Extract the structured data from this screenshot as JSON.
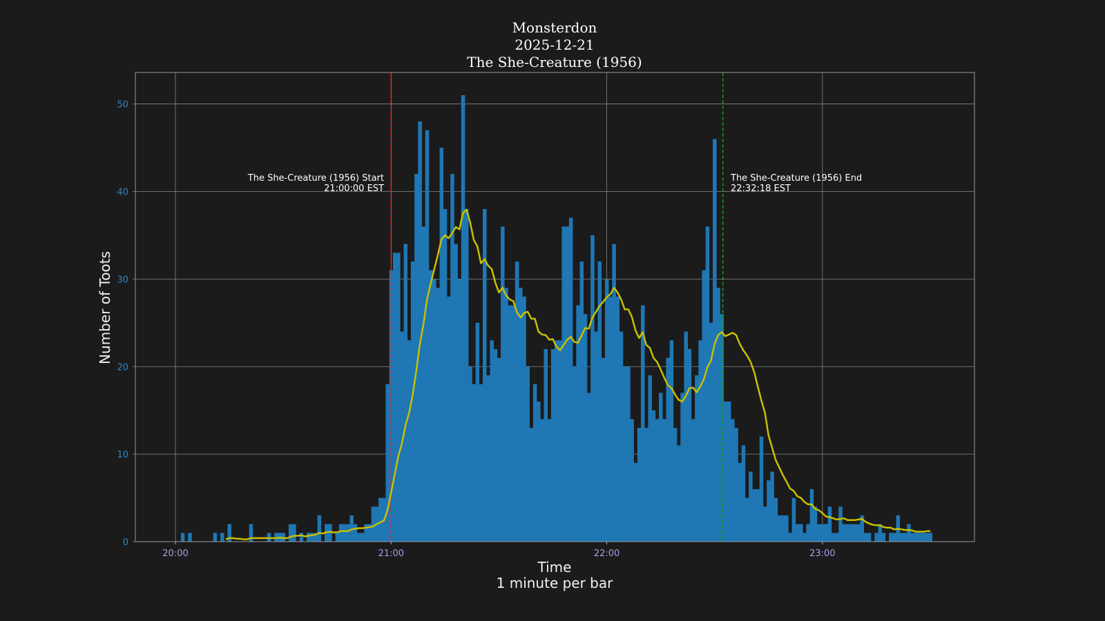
{
  "chart_data": {
    "type": "bar",
    "title_lines": [
      "Monsterdon",
      "2025-12-21",
      "The She-Creature (1956)"
    ],
    "xlabel": "Time",
    "xlabel_sub": "1 minute per bar",
    "ylabel": "Number of Toots",
    "x_ticks": [
      "20:00",
      "21:00",
      "22:00",
      "23:00"
    ],
    "y_ticks": [
      0,
      10,
      20,
      30,
      40,
      50
    ],
    "xlim": [
      "19:48:51",
      "23:42:18"
    ],
    "ylim": [
      0,
      53.6
    ],
    "grid": true,
    "bar_start": "20:00",
    "bar_interval_minutes": 1,
    "values": [
      0,
      0,
      1,
      0,
      1,
      0,
      0,
      0,
      0,
      0,
      0,
      1,
      0,
      1,
      0,
      2,
      0,
      0,
      0,
      0,
      0,
      2,
      0,
      0,
      0,
      0,
      1,
      0,
      1,
      1,
      1,
      0,
      2,
      2,
      0,
      1,
      0,
      1,
      1,
      1,
      3,
      0,
      2,
      2,
      0,
      1,
      2,
      2,
      2,
      3,
      2,
      1,
      1,
      2,
      2,
      4,
      4,
      5,
      5,
      18,
      31,
      33,
      33,
      24,
      34,
      23,
      32,
      42,
      48,
      36,
      47,
      31,
      30,
      29,
      45,
      38,
      28,
      42,
      34,
      30,
      51,
      38,
      20,
      18,
      25,
      18,
      38,
      19,
      23,
      22,
      21,
      36,
      29,
      27,
      27,
      32,
      29,
      28,
      20,
      13,
      18,
      16,
      14,
      22,
      14,
      22,
      23,
      23,
      36,
      36,
      37,
      20,
      27,
      32,
      26,
      17,
      35,
      24,
      32,
      21,
      30,
      28,
      34,
      28,
      24,
      20,
      20,
      14,
      9,
      13,
      27,
      13,
      19,
      15,
      14,
      17,
      14,
      21,
      23,
      13,
      11,
      17,
      24,
      22,
      14,
      19,
      23,
      31,
      36,
      25,
      46,
      29,
      26,
      16,
      16,
      14,
      13,
      9,
      11,
      5,
      8,
      6,
      6,
      12,
      4,
      7,
      8,
      5,
      3,
      3,
      3,
      1,
      5,
      2,
      2,
      1,
      2,
      6,
      4,
      2,
      2,
      2,
      4,
      1,
      1,
      4,
      2,
      2,
      2,
      2,
      2,
      3,
      1,
      1,
      0,
      1,
      2,
      1,
      0,
      1,
      1,
      3,
      1,
      1,
      2,
      1,
      1,
      1,
      1,
      1,
      1
    ],
    "smoothed_series": "rolling mean",
    "annotations": [
      {
        "time": "21:00:00",
        "line1": "The She-Creature (1956) Start",
        "line2": "21:00:00 EST",
        "color": "#ff2020"
      },
      {
        "time": "22:32:18",
        "line1": "The She-Creature (1956) End",
        "line2": "22:32:18 EST",
        "color": "#1a9a1a"
      }
    ],
    "colors": {
      "background": "#1b1b1b",
      "bars": "#1f77b4",
      "smoothed": "#c8c000"
    }
  }
}
